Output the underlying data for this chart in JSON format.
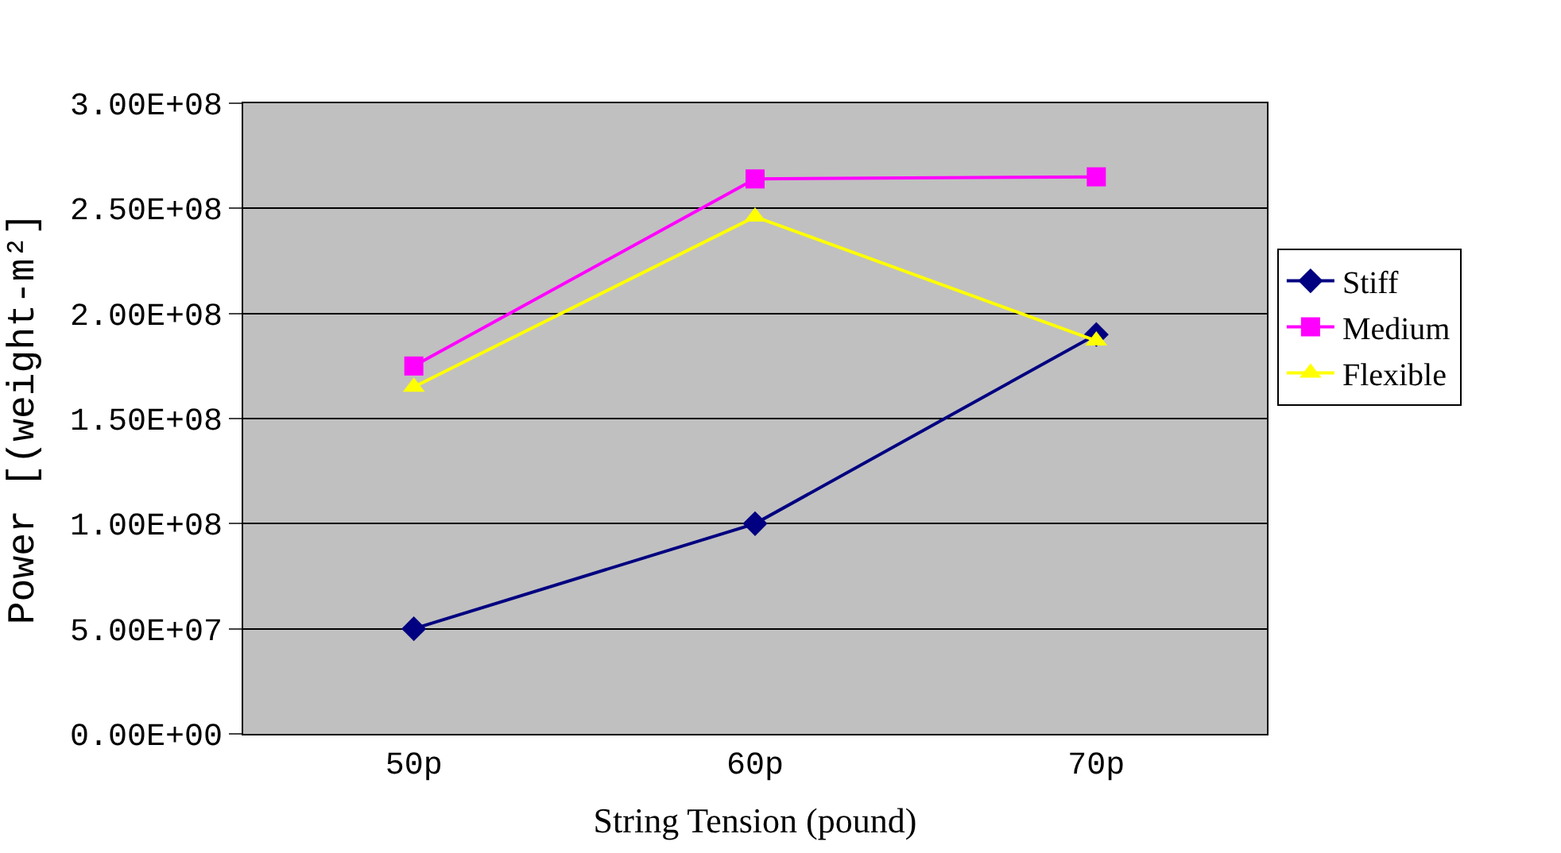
{
  "chart_data": {
    "type": "line",
    "xlabel": "String Tension (pound)",
    "ylabel": "Power [(weight-m²]",
    "categories": [
      "50p",
      "60p",
      "70p"
    ],
    "series": [
      {
        "name": "Stiff",
        "color": "#000080",
        "marker": "diamond",
        "values": [
          50000000.0,
          100000000.0,
          190000000.0
        ]
      },
      {
        "name": "Medium",
        "color": "#ff00ff",
        "marker": "square",
        "values": [
          175000000.0,
          264000000.0,
          265000000.0
        ]
      },
      {
        "name": "Flexible",
        "color": "#ffff00",
        "marker": "triangle",
        "values": [
          165000000.0,
          246000000.0,
          187000000.0
        ]
      }
    ],
    "ylim": [
      0,
      300000000.0
    ],
    "yticks": [
      {
        "value": 0,
        "label": "0.00E+00"
      },
      {
        "value": 50000000.0,
        "label": "5.00E+07"
      },
      {
        "value": 100000000.0,
        "label": "1.00E+08"
      },
      {
        "value": 150000000.0,
        "label": "1.50E+08"
      },
      {
        "value": 200000000.0,
        "label": "2.00E+08"
      },
      {
        "value": 250000000.0,
        "label": "2.50E+08"
      },
      {
        "value": 300000000.0,
        "label": "3.00E+08"
      }
    ],
    "grid": "y",
    "legend": "right"
  }
}
